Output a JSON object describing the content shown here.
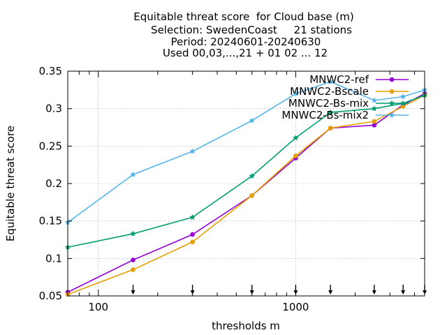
{
  "chart_data": {
    "type": "line",
    "title_lines": [
      "Equitable threat score  for Cloud base (m)",
      "Selection: SwedenCoast     21 stations",
      "Period: 20240601-20240630",
      "Used 00,03,...,21 + 01 02 ... 12"
    ],
    "xlabel": "thresholds m",
    "ylabel": "Equitable threat score",
    "xscale": "log",
    "xlim": [
      70,
      4500
    ],
    "ylim": [
      0.05,
      0.35
    ],
    "x_tick_labels": [
      "100",
      "1000"
    ],
    "x_tick_values": [
      100,
      1000
    ],
    "y_ticks": [
      0.05,
      0.1,
      0.15,
      0.2,
      0.25,
      0.3,
      0.35
    ],
    "y_tick_labels": [
      "0.05",
      "0.1",
      "0.15",
      "0.2",
      "0.25",
      "0.3",
      "0.35"
    ],
    "grid": true,
    "legend_position": "top-right",
    "threshold_marks": [
      150,
      300,
      600,
      1000,
      1500,
      2500,
      3500,
      4500
    ],
    "x": [
      70,
      150,
      300,
      600,
      1000,
      1500,
      2500,
      3500,
      4500
    ],
    "series": [
      {
        "name": "MNWC2-ref",
        "color": "#9400d3",
        "marker": "circle",
        "values": [
          0.055,
          0.098,
          0.132,
          0.184,
          0.234,
          0.274,
          0.278,
          0.305,
          0.32
        ]
      },
      {
        "name": "MNWC2-Bscale",
        "color": "#e69f00",
        "marker": "circle",
        "values": [
          0.052,
          0.085,
          0.122,
          0.184,
          0.237,
          0.274,
          0.283,
          0.303,
          0.318
        ]
      },
      {
        "name": "MNWC2-Bs-mix",
        "color": "#009e73",
        "marker": "star",
        "values": [
          0.115,
          0.133,
          0.155,
          0.21,
          0.261,
          0.295,
          0.3,
          0.307,
          0.318
        ]
      },
      {
        "name": "MNWC2-Bs-mix2",
        "color": "#56b4e9",
        "marker": "star",
        "values": [
          0.148,
          0.212,
          0.243,
          0.284,
          0.32,
          0.336,
          0.311,
          0.316,
          0.325
        ]
      }
    ]
  }
}
